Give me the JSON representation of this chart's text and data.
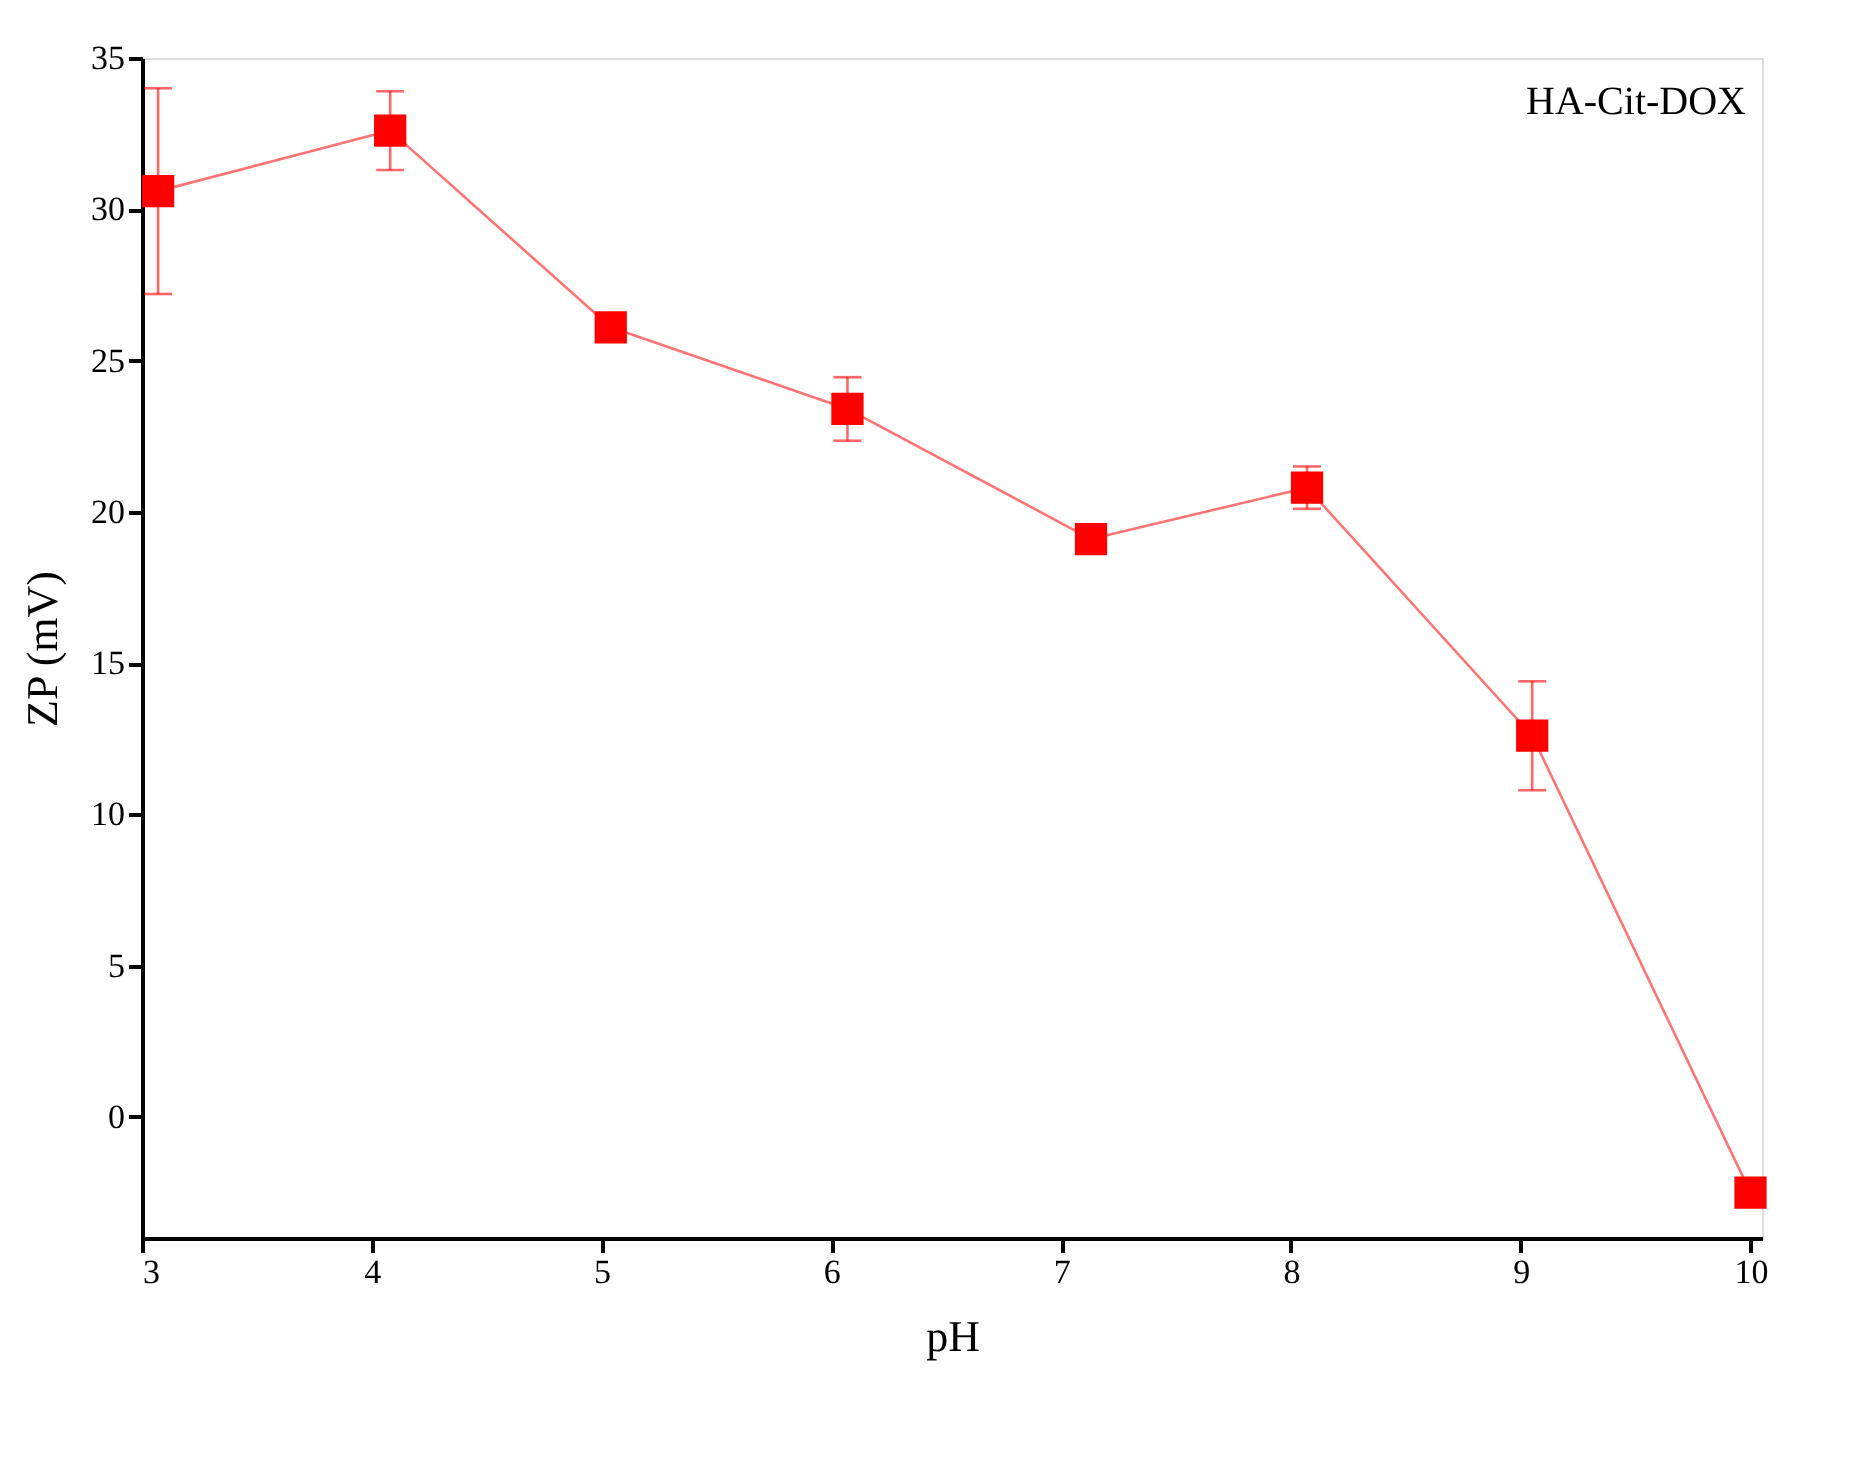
{
  "chart_data": {
    "type": "line",
    "xlabel": "pH",
    "ylabel": "ZP (mV)",
    "x": [
      3.07,
      4.08,
      5.04,
      6.07,
      7.13,
      8.07,
      9.05,
      10.0
    ],
    "series": [
      {
        "color": "#ff0000",
        "values": [
          30.6,
          32.6,
          26.1,
          23.4,
          19.1,
          20.8,
          12.6,
          -2.5
        ],
        "errors": [
          3.4,
          1.3,
          null,
          1.05,
          null,
          0.7,
          1.8,
          0.4
        ]
      }
    ],
    "annotations": [
      "HA-Cit-DOX"
    ],
    "xlim": [
      3,
      10.05
    ],
    "xticks": [
      3,
      4,
      5,
      6,
      7,
      8,
      9,
      10
    ],
    "ylim": [
      -4,
      35
    ],
    "yticks": [
      0,
      5,
      10,
      15,
      20,
      25,
      30,
      35
    ],
    "marker": "square",
    "line_style": "solid",
    "grid": false
  }
}
